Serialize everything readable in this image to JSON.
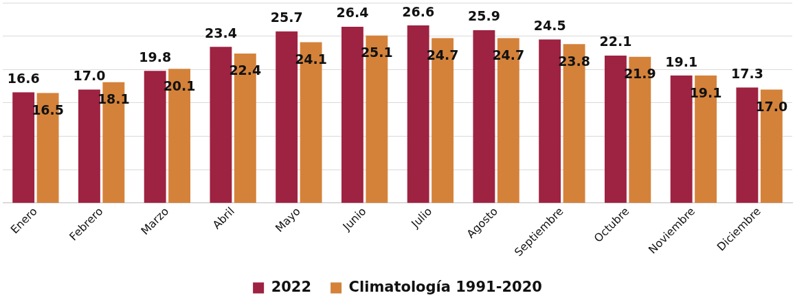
{
  "chart_data": {
    "type": "bar",
    "categories": [
      "Enero",
      "Febrero",
      "Marzo",
      "Abril",
      "Mayo",
      "Junio",
      "Julio",
      "Agosto",
      "Septiembre",
      "Octubre",
      "Noviembre",
      "Diciembre"
    ],
    "series": [
      {
        "name": "2022",
        "color": "#9e2241",
        "values": [
          16.6,
          17.0,
          19.8,
          23.4,
          25.7,
          26.4,
          26.6,
          25.9,
          24.5,
          22.1,
          19.1,
          17.3
        ],
        "value_labels": [
          "16.6",
          "17.0",
          "19.8",
          "23.4",
          "25.7",
          "26.4",
          "26.6",
          "25.9",
          "24.5",
          "22.1",
          "19.1",
          "17.3"
        ]
      },
      {
        "name": "Climatología 1991-2020",
        "color": "#d4823a",
        "values": [
          16.5,
          18.1,
          20.1,
          22.4,
          24.1,
          25.1,
          24.7,
          24.7,
          23.8,
          21.9,
          19.1,
          17.0
        ],
        "value_labels": [
          "16.5",
          "18.1",
          "20.1",
          "22.4",
          "24.1",
          "25.1",
          "24.7",
          "24.7",
          "23.8",
          "21.9",
          "19.1",
          "17.0"
        ]
      }
    ],
    "ylim": [
      0,
      30
    ],
    "yticks": [
      {
        "value": 0,
        "label": null
      },
      {
        "value": 5,
        "label": null
      },
      {
        "value": 10,
        "label": null
      },
      {
        "value": 15,
        "label": null
      },
      {
        "value": 20,
        "label": null
      },
      {
        "value": 25,
        "label": null
      },
      {
        "value": 30,
        "label": null
      }
    ],
    "tick_labels": "x",
    "grid": "y",
    "legend": "bottom"
  }
}
